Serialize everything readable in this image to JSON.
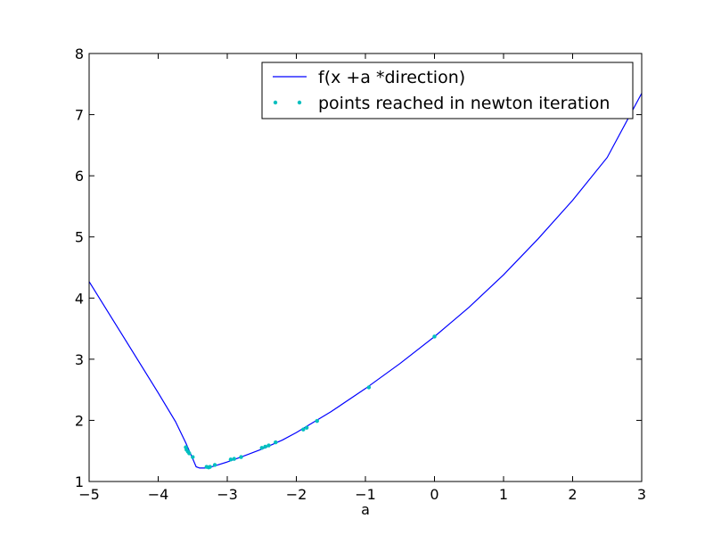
{
  "chart_data": {
    "type": "line",
    "title": "",
    "xlabel": "a",
    "ylabel": "",
    "xlim": [
      -5,
      3
    ],
    "ylim": [
      1,
      8
    ],
    "xticks": [
      "−5",
      "−4",
      "−3",
      "−2",
      "−1",
      "0",
      "1",
      "2",
      "3"
    ],
    "yticks": [
      "1",
      "2",
      "3",
      "4",
      "5",
      "6",
      "7",
      "8"
    ],
    "xtick_values": [
      -5,
      -4,
      -3,
      -2,
      -1,
      0,
      1,
      2,
      3
    ],
    "ytick_values": [
      1,
      2,
      3,
      4,
      5,
      6,
      7,
      8
    ],
    "grid": false,
    "legend_position": "top-right",
    "series": [
      {
        "name": "f(x +a *direction)",
        "style": "line",
        "color": "#0000ff",
        "x": [
          -5.0,
          -4.5,
          -4.0,
          -3.75,
          -3.6,
          -3.5,
          -3.45,
          -3.4,
          -3.35,
          -3.3,
          -3.2,
          -3.0,
          -2.8,
          -2.5,
          -2.2,
          -2.0,
          -1.5,
          -1.0,
          -0.5,
          0.0,
          0.5,
          1.0,
          1.5,
          2.0,
          2.5,
          3.0
        ],
        "y": [
          4.27,
          3.36,
          2.45,
          1.98,
          1.63,
          1.37,
          1.24,
          1.22,
          1.22,
          1.22,
          1.25,
          1.32,
          1.4,
          1.53,
          1.68,
          1.8,
          2.14,
          2.52,
          2.93,
          3.37,
          3.85,
          4.38,
          4.97,
          5.6,
          6.3,
          7.35
        ]
      },
      {
        "name": "points reached in newton iteration",
        "style": "points",
        "color": "#00bfbf",
        "x": [
          -3.6,
          -3.59,
          -3.57,
          -3.55,
          -3.5,
          -3.3,
          -3.27,
          -3.25,
          -3.18,
          -2.95,
          -2.9,
          -2.8,
          -2.5,
          -2.45,
          -2.4,
          -2.3,
          -1.9,
          -1.85,
          -1.7,
          -0.95,
          0.0
        ],
        "y": [
          1.56,
          1.52,
          1.49,
          1.46,
          1.4,
          1.24,
          1.23,
          1.24,
          1.27,
          1.36,
          1.37,
          1.4,
          1.55,
          1.57,
          1.59,
          1.64,
          1.85,
          1.88,
          1.99,
          2.54,
          3.37
        ]
      }
    ]
  }
}
